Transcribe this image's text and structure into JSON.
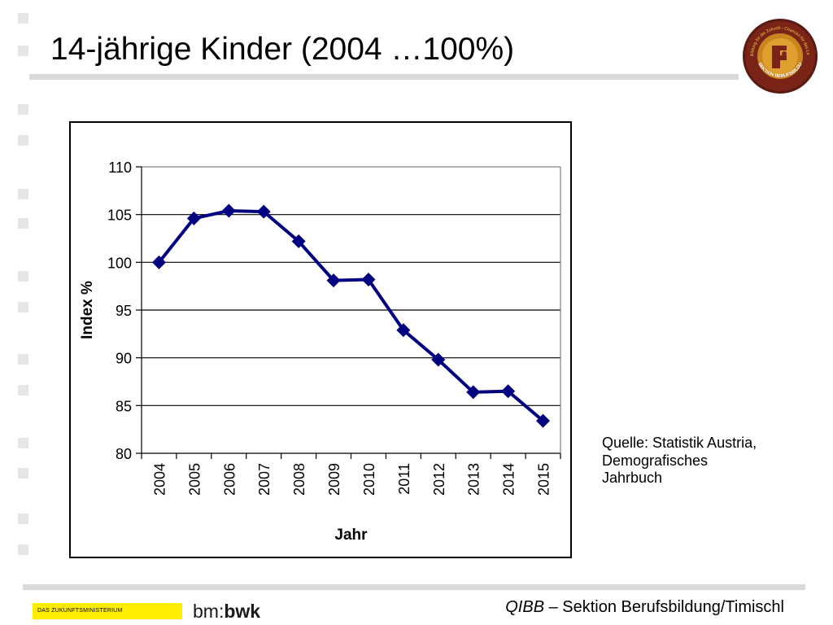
{
  "slide": {
    "title": "14-jährige Kinder (2004 …100%)",
    "source_lines": [
      "Quelle: Statistik Austria,",
      "Demografisches",
      "Jahrbuch"
    ]
  },
  "footer": {
    "ministry_label": "DAS ZUKUNFTSMINISTERIUM",
    "bm_prefix": "bm:",
    "bm_suffix": "bwk",
    "credit_italic": "QIBB",
    "credit_rest": " – Sektion Berufsbildung/Timischl"
  },
  "logo": {
    "ring_text": "Bildung für die Zukunft - Chancen für das Leben",
    "band_text": "SEKTION BERUFSBILDUNG"
  },
  "colors": {
    "series": "#000080",
    "grid": "#000000",
    "bullet": "#e6e6e6",
    "accent_yellow": "#ffee00"
  },
  "chart_data": {
    "type": "line",
    "title": "",
    "xlabel": "Jahr",
    "ylabel": "Index %",
    "categories": [
      "2004",
      "2005",
      "2006",
      "2007",
      "2008",
      "2009",
      "2010",
      "2011",
      "2012",
      "2013",
      "2014",
      "2015"
    ],
    "series": [
      {
        "values": [
          100,
          104.6,
          105.4,
          105.3,
          102.2,
          98.1,
          98.2,
          92.9,
          89.8,
          86.4,
          86.5,
          83.4
        ]
      }
    ],
    "ylim": [
      80,
      110
    ],
    "yticks": [
      80,
      85,
      90,
      95,
      100,
      105,
      110
    ],
    "grid": true,
    "marker": "diamond"
  }
}
